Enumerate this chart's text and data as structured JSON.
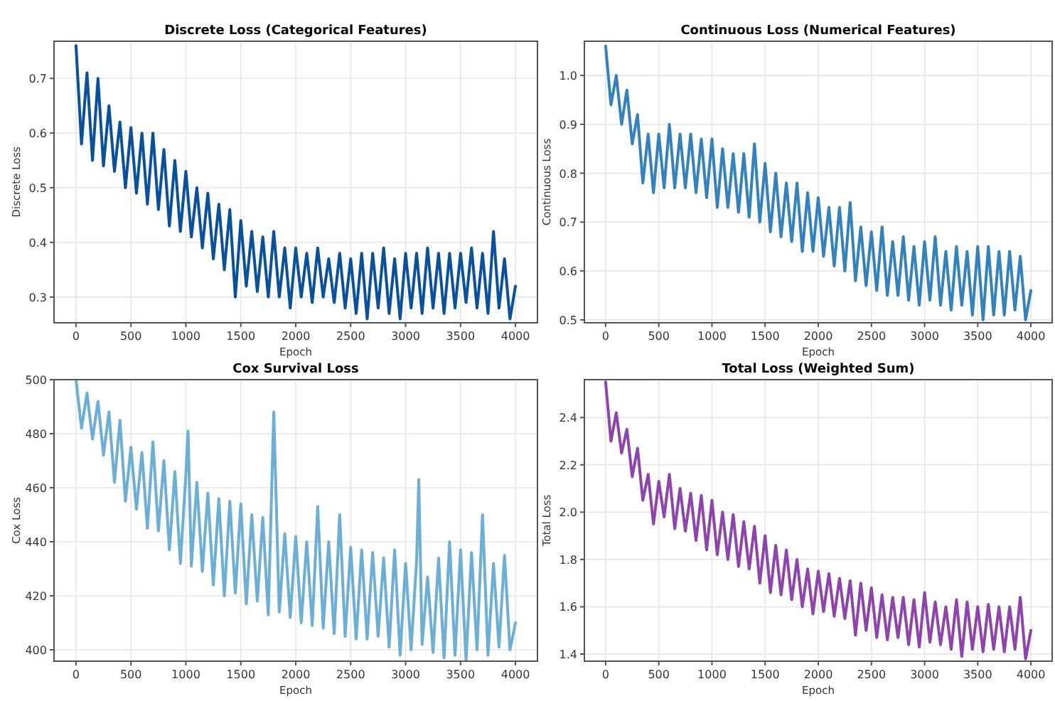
{
  "chart_data": [
    {
      "type": "line",
      "title": "Discrete Loss (Categorical Features)",
      "xlabel": "Epoch",
      "ylabel": "Discrete Loss",
      "grid": true,
      "x": [
        0,
        50,
        100,
        150,
        200,
        250,
        300,
        350,
        400,
        450,
        500,
        550,
        600,
        650,
        700,
        750,
        800,
        850,
        900,
        950,
        1000,
        1050,
        1100,
        1150,
        1200,
        1250,
        1300,
        1350,
        1400,
        1450,
        1500,
        1550,
        1600,
        1650,
        1700,
        1750,
        1800,
        1850,
        1900,
        1950,
        2000,
        2050,
        2100,
        2150,
        2200,
        2250,
        2300,
        2350,
        2400,
        2450,
        2500,
        2550,
        2600,
        2650,
        2700,
        2750,
        2800,
        2850,
        2900,
        2950,
        3000,
        3050,
        3100,
        3150,
        3200,
        3250,
        3300,
        3350,
        3400,
        3450,
        3500,
        3550,
        3600,
        3650,
        3700,
        3750,
        3800,
        3850,
        3900,
        3950,
        4000
      ],
      "series": [
        {
          "color": "#08519c",
          "values": [
            0.76,
            0.58,
            0.71,
            0.55,
            0.7,
            0.54,
            0.65,
            0.53,
            0.62,
            0.5,
            0.61,
            0.49,
            0.6,
            0.47,
            0.6,
            0.46,
            0.57,
            0.43,
            0.55,
            0.42,
            0.53,
            0.41,
            0.5,
            0.39,
            0.49,
            0.37,
            0.47,
            0.35,
            0.46,
            0.3,
            0.44,
            0.32,
            0.42,
            0.31,
            0.41,
            0.3,
            0.42,
            0.3,
            0.39,
            0.28,
            0.39,
            0.3,
            0.38,
            0.29,
            0.39,
            0.3,
            0.37,
            0.29,
            0.38,
            0.28,
            0.37,
            0.27,
            0.38,
            0.26,
            0.38,
            0.28,
            0.39,
            0.27,
            0.37,
            0.26,
            0.38,
            0.28,
            0.38,
            0.27,
            0.39,
            0.28,
            0.38,
            0.27,
            0.38,
            0.28,
            0.38,
            0.29,
            0.39,
            0.28,
            0.38,
            0.27,
            0.42,
            0.28,
            0.37,
            0.26,
            0.32
          ]
        }
      ],
      "xlim": [
        -200,
        4200
      ],
      "xticks": [
        0,
        500,
        1000,
        1500,
        2000,
        2500,
        3000,
        3500,
        4000
      ],
      "ylim": [
        0.253,
        0.768
      ],
      "yticks": [
        0.3,
        0.4,
        0.5,
        0.6,
        0.7
      ]
    },
    {
      "type": "line",
      "title": "Continuous Loss (Numerical Features)",
      "xlabel": "Epoch",
      "ylabel": "Continuous Loss",
      "grid": true,
      "x": [
        0,
        50,
        100,
        150,
        200,
        250,
        300,
        350,
        400,
        450,
        500,
        550,
        600,
        650,
        700,
        750,
        800,
        850,
        900,
        950,
        1000,
        1050,
        1100,
        1150,
        1200,
        1250,
        1300,
        1350,
        1400,
        1450,
        1500,
        1550,
        1600,
        1650,
        1700,
        1750,
        1800,
        1850,
        1900,
        1950,
        2000,
        2050,
        2100,
        2150,
        2200,
        2250,
        2300,
        2350,
        2400,
        2450,
        2500,
        2550,
        2600,
        2650,
        2700,
        2750,
        2800,
        2850,
        2900,
        2950,
        3000,
        3050,
        3100,
        3150,
        3200,
        3250,
        3300,
        3350,
        3400,
        3450,
        3500,
        3550,
        3600,
        3650,
        3700,
        3750,
        3800,
        3850,
        3900,
        3950,
        4000
      ],
      "series": [
        {
          "color": "#3182bd",
          "values": [
            1.06,
            0.94,
            1.0,
            0.9,
            0.97,
            0.86,
            0.92,
            0.78,
            0.88,
            0.76,
            0.88,
            0.77,
            0.9,
            0.77,
            0.88,
            0.77,
            0.88,
            0.76,
            0.87,
            0.75,
            0.87,
            0.73,
            0.85,
            0.73,
            0.84,
            0.72,
            0.84,
            0.71,
            0.86,
            0.7,
            0.82,
            0.68,
            0.8,
            0.67,
            0.78,
            0.66,
            0.78,
            0.64,
            0.76,
            0.64,
            0.75,
            0.63,
            0.73,
            0.61,
            0.73,
            0.6,
            0.74,
            0.58,
            0.69,
            0.57,
            0.68,
            0.56,
            0.69,
            0.55,
            0.66,
            0.55,
            0.67,
            0.54,
            0.65,
            0.53,
            0.66,
            0.54,
            0.67,
            0.53,
            0.64,
            0.52,
            0.65,
            0.53,
            0.64,
            0.51,
            0.65,
            0.5,
            0.65,
            0.51,
            0.64,
            0.51,
            0.64,
            0.52,
            0.63,
            0.5,
            0.56
          ]
        }
      ],
      "xlim": [
        -200,
        4200
      ],
      "xticks": [
        0,
        500,
        1000,
        1500,
        2000,
        2500,
        3000,
        3500,
        4000
      ],
      "ylim": [
        0.494,
        1.07
      ],
      "yticks": [
        0.5,
        0.6,
        0.7,
        0.8,
        0.9,
        {
          "value": 1,
          "label": "1.0"
        }
      ]
    },
    {
      "type": "line",
      "title": "Cox Survival Loss",
      "xlabel": "Epoch",
      "ylabel": "Cox Loss",
      "grid": true,
      "x": [
        0,
        50,
        100,
        150,
        200,
        250,
        300,
        350,
        400,
        450,
        500,
        550,
        600,
        650,
        700,
        750,
        800,
        850,
        900,
        950,
        1000,
        1020,
        1050,
        1100,
        1150,
        1200,
        1250,
        1300,
        1350,
        1400,
        1450,
        1500,
        1550,
        1600,
        1650,
        1700,
        1750,
        1800,
        1850,
        1900,
        1950,
        2000,
        2050,
        2100,
        2150,
        2200,
        2250,
        2300,
        2350,
        2400,
        2450,
        2500,
        2550,
        2600,
        2650,
        2700,
        2750,
        2800,
        2850,
        2900,
        2950,
        3000,
        3050,
        3100,
        3120,
        3150,
        3200,
        3250,
        3300,
        3350,
        3400,
        3450,
        3500,
        3550,
        3600,
        3650,
        3700,
        3750,
        3800,
        3850,
        3900,
        3950,
        4000
      ],
      "series": [
        {
          "color": "#6baed6",
          "values": [
            500,
            482,
            495,
            478,
            492,
            472,
            488,
            462,
            485,
            455,
            475,
            452,
            473,
            445,
            477,
            444,
            470,
            437,
            466,
            432,
            465,
            481,
            431,
            462,
            429,
            458,
            424,
            456,
            420,
            455,
            421,
            454,
            417,
            450,
            418,
            449,
            413,
            488,
            414,
            443,
            412,
            442,
            410,
            440,
            409,
            453,
            408,
            440,
            406,
            450,
            405,
            438,
            404,
            437,
            404,
            436,
            405,
            434,
            401,
            437,
            398,
            432,
            400,
            433,
            463,
            402,
            427,
            399,
            434,
            397,
            440,
            398,
            437,
            396,
            436,
            400,
            450,
            398,
            432,
            401,
            435,
            400,
            410
          ]
        }
      ],
      "xlim": [
        -200,
        4200
      ],
      "xticks": [
        0,
        500,
        1000,
        1500,
        2000,
        2500,
        3000,
        3500,
        4000
      ],
      "ylim": [
        395.8,
        500
      ],
      "yticks": [
        400,
        420,
        440,
        460,
        480,
        500
      ]
    },
    {
      "type": "line",
      "title": "Total Loss (Weighted Sum)",
      "xlabel": "Epoch",
      "ylabel": "Total Loss",
      "grid": true,
      "x": [
        0,
        50,
        100,
        150,
        200,
        250,
        300,
        350,
        400,
        450,
        500,
        550,
        600,
        650,
        700,
        750,
        800,
        850,
        900,
        950,
        1000,
        1050,
        1100,
        1150,
        1200,
        1250,
        1300,
        1350,
        1400,
        1450,
        1500,
        1550,
        1600,
        1650,
        1700,
        1750,
        1800,
        1850,
        1900,
        1950,
        2000,
        2050,
        2100,
        2150,
        2200,
        2250,
        2300,
        2350,
        2400,
        2450,
        2500,
        2550,
        2600,
        2650,
        2700,
        2750,
        2800,
        2850,
        2900,
        2950,
        3000,
        3050,
        3100,
        3150,
        3200,
        3250,
        3300,
        3350,
        3400,
        3450,
        3500,
        3550,
        3600,
        3650,
        3700,
        3750,
        3800,
        3850,
        3900,
        3950,
        4000
      ],
      "series": [
        {
          "color": "#8e44ad",
          "values": [
            2.55,
            2.3,
            2.42,
            2.25,
            2.35,
            2.15,
            2.27,
            2.05,
            2.16,
            1.95,
            2.13,
            1.98,
            2.16,
            1.93,
            2.1,
            1.92,
            2.08,
            1.88,
            2.07,
            1.84,
            2.05,
            1.82,
            2.0,
            1.8,
            1.99,
            1.77,
            1.96,
            1.76,
            1.94,
            1.7,
            1.9,
            1.66,
            1.86,
            1.65,
            1.84,
            1.63,
            1.8,
            1.6,
            1.76,
            1.57,
            1.75,
            1.58,
            1.74,
            1.56,
            1.72,
            1.55,
            1.71,
            1.48,
            1.7,
            1.5,
            1.68,
            1.47,
            1.65,
            1.46,
            1.64,
            1.47,
            1.64,
            1.44,
            1.63,
            1.43,
            1.66,
            1.45,
            1.62,
            1.44,
            1.6,
            1.42,
            1.63,
            1.39,
            1.62,
            1.42,
            1.6,
            1.41,
            1.61,
            1.42,
            1.6,
            1.41,
            1.6,
            1.42,
            1.64,
            1.38,
            1.5
          ]
        }
      ],
      "xlim": [
        -200,
        4200
      ],
      "xticks": [
        0,
        500,
        1000,
        1500,
        2000,
        2500,
        3000,
        3500,
        4000
      ],
      "ylim": [
        1.37,
        2.56
      ],
      "yticks": [
        1.4,
        1.6,
        1.8,
        {
          "value": 2,
          "label": "2.0"
        },
        2.2,
        2.4
      ]
    }
  ]
}
